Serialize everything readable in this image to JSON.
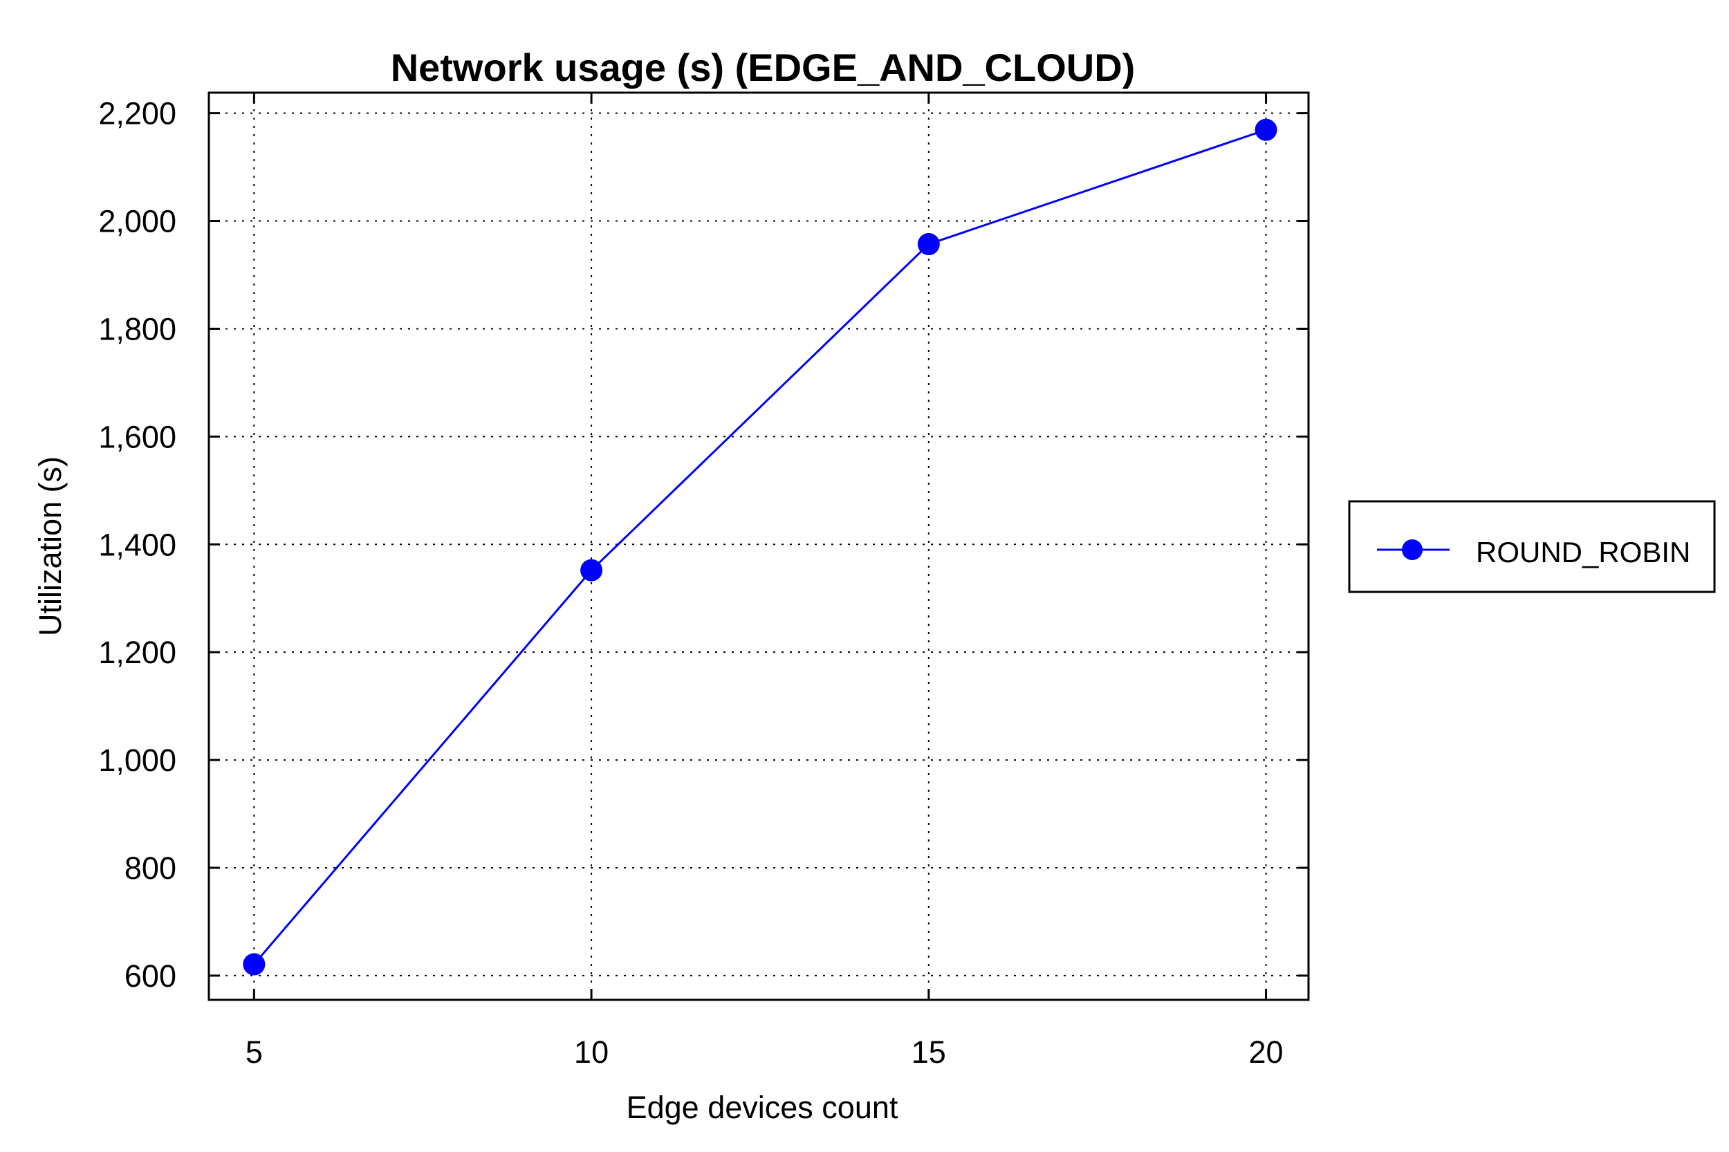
{
  "chart_data": {
    "type": "line",
    "title": "Network usage (s) (EDGE_AND_CLOUD)",
    "xlabel": "Edge devices count",
    "ylabel": "Utilization (s)",
    "x": [
      5,
      10,
      15,
      20
    ],
    "x_ticks": [
      "5",
      "10",
      "15",
      "20"
    ],
    "y_ticks": [
      "600",
      "800",
      "1,000",
      "1,200",
      "1,400",
      "1,600",
      "1,800",
      "2,000",
      "2,200"
    ],
    "y_tick_values": [
      600,
      800,
      1000,
      1200,
      1400,
      1600,
      1800,
      2000,
      2200
    ],
    "xlim": [
      4.33,
      20.63
    ],
    "ylim": [
      555,
      2238
    ],
    "grid": true,
    "legend_position": "right",
    "series": [
      {
        "name": "ROUND_ROBIN",
        "color": "#0000ff",
        "marker": "circle",
        "values": [
          621,
          1352,
          1957,
          2169
        ]
      }
    ]
  }
}
